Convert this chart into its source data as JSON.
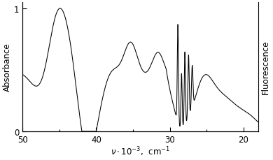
{
  "ylabel_left": "Absorbance",
  "ylabel_right": "Fluorescence",
  "xlim": [
    50,
    18
  ],
  "ylim": [
    0,
    1.05
  ],
  "yticks": [
    0,
    1
  ],
  "xticks": [
    50,
    40,
    30,
    20
  ],
  "background_color": "#ffffff",
  "line_color": "#000000"
}
